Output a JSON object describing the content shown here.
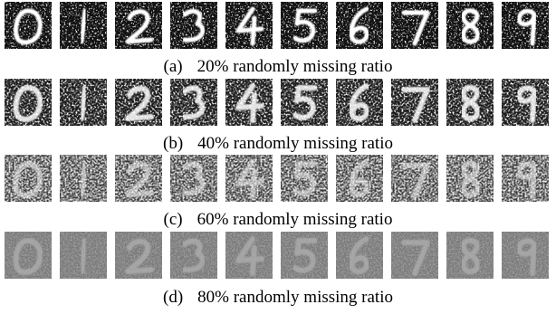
{
  "panels": [
    {
      "label": "(a)",
      "caption": "20% randomly missing ratio"
    },
    {
      "label": "(b)",
      "caption": "40% randomly missing ratio"
    },
    {
      "label": "(c)",
      "caption": "60% randomly missing ratio"
    },
    {
      "label": "(d)",
      "caption": "80% randomly missing ratio"
    }
  ]
}
